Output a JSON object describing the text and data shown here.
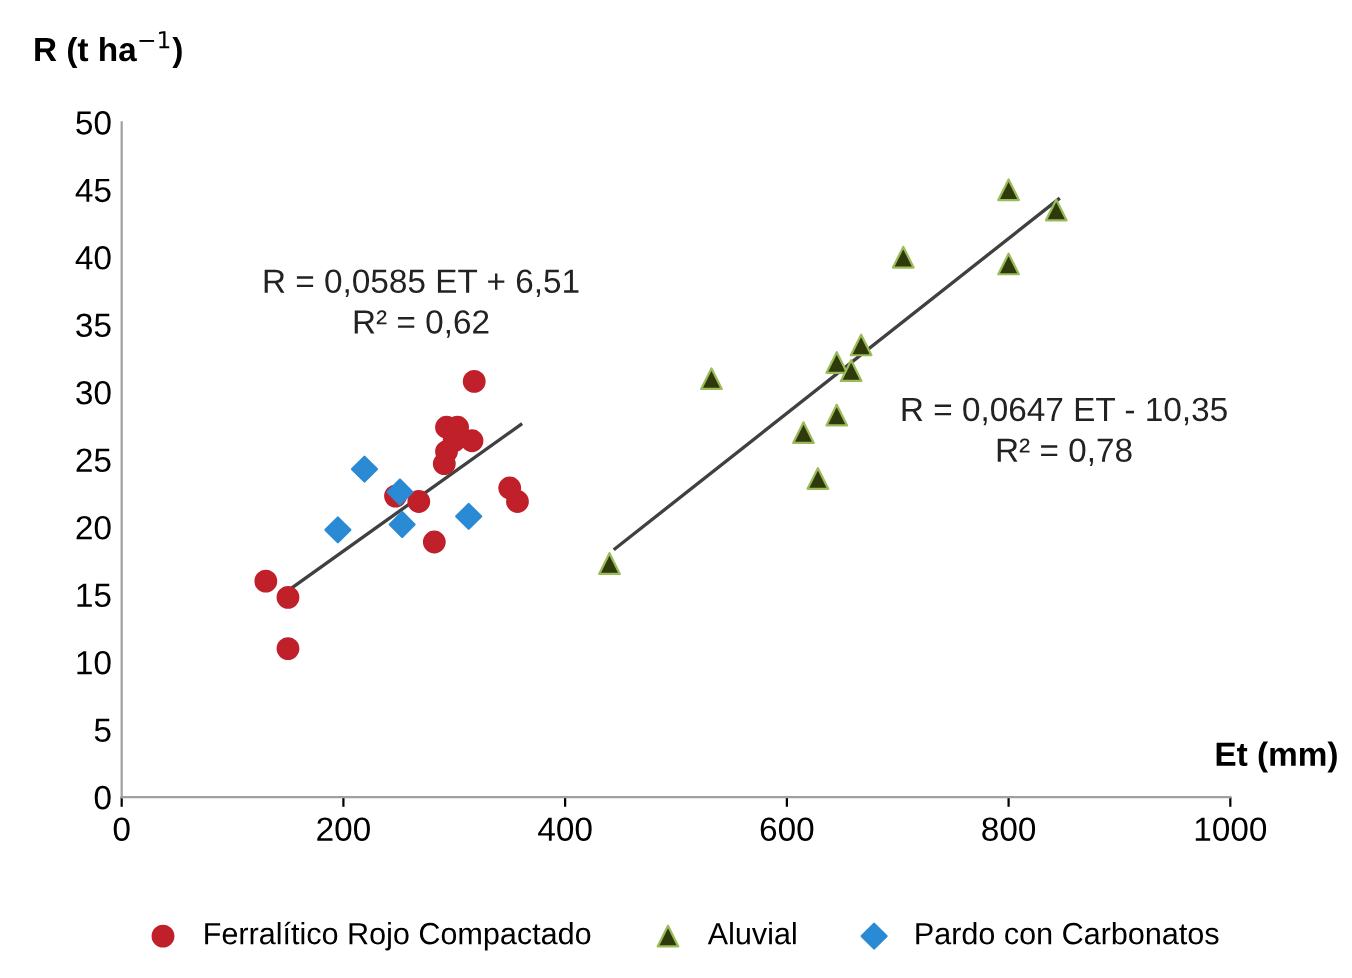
{
  "chart_data": {
    "type": "scatter",
    "xlabel": "Et (mm)",
    "ylabel": "R (t ha$^{−1}$)",
    "xlim": [
      0,
      1000
    ],
    "xticks": [
      0,
      200,
      400,
      600,
      800,
      1000
    ],
    "ylim": [
      0,
      50
    ],
    "yticks": [
      0,
      5,
      10,
      15,
      20,
      25,
      30,
      35,
      40,
      45,
      50
    ],
    "grid": false,
    "legend": "bottom",
    "series": [
      {
        "name": "Ferralítico Rojo Compactado",
        "color": "#c0202a",
        "marker": "circle",
        "x": [
          130,
          150,
          150,
          318,
          293,
          303,
          300,
          316,
          293,
          291,
          350,
          357,
          247,
          268,
          282
        ],
        "values": [
          16.0,
          14.8,
          11.0,
          30.8,
          27.4,
          27.4,
          26.4,
          26.4,
          25.6,
          24.7,
          22.9,
          21.9,
          22.3,
          21.9,
          18.9
        ]
      },
      {
        "name": "Aluvial",
        "color": "#2f3a0c",
        "marker": "triangle",
        "x": [
          440,
          532,
          615,
          628,
          645,
          645,
          658,
          667,
          705,
          800,
          800,
          843
        ],
        "values": [
          17.3,
          31,
          27,
          23.6,
          28.3,
          32.2,
          31.6,
          33.5,
          40,
          45,
          39.5,
          43.5
        ]
      },
      {
        "name": "Pardo con Carbonatos",
        "color": "#2a8ad4",
        "marker": "diamond",
        "x": [
          219,
          251,
          195,
          253,
          313
        ],
        "values": [
          24.3,
          22.6,
          19.8,
          20.2,
          20.8
        ]
      },
      {
        "type": "line",
        "color": "#404040",
        "marker": "none",
        "x": [
          150,
          360
        ],
        "values": [
          15.3,
          27.6
        ]
      },
      {
        "type": "line",
        "color": "#404040",
        "marker": "none",
        "x": [
          445,
          845
        ],
        "values": [
          18.4,
          44.3
        ]
      }
    ],
    "annotations": [
      "R = 0,0585 ET + 6,51\nR² = 0,62",
      "R = 0,0647 ET - 10,35\nR² = 0,78"
    ]
  }
}
